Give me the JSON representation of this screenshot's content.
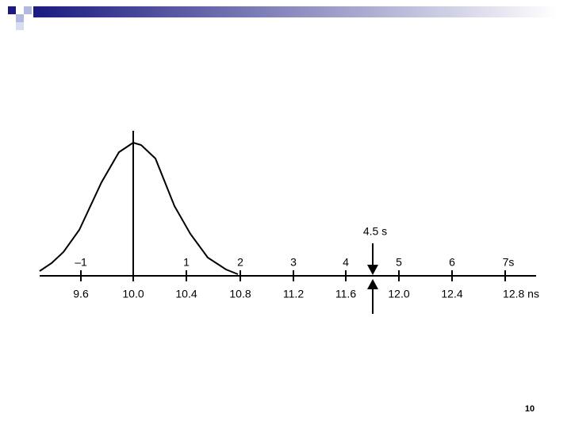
{
  "diagram": {
    "sigma_labels": [
      "–1",
      "1",
      "2",
      "3",
      "4",
      "5",
      "6",
      "7s"
    ],
    "time_labels": [
      "9.6",
      "10.0",
      "10.4",
      "10.8",
      "11.2",
      "11.6",
      "12.0",
      "12.4",
      "12.8 ns"
    ],
    "annotation": "4.5 s"
  },
  "footer": {
    "page_number": "10"
  }
}
